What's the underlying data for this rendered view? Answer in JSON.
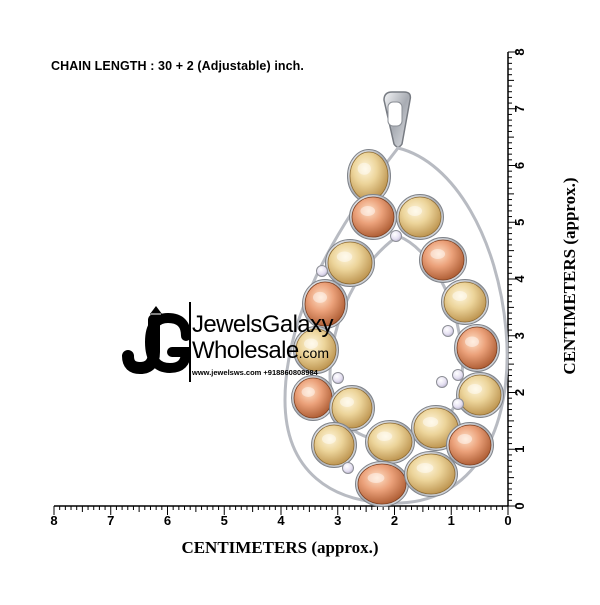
{
  "chain_note": "CHAIN LENGTH : 30 + 2 (Adjustable) inch.",
  "axes": {
    "x_label": "CENTIMETERS (approx.)",
    "y_label": "CENTIMETERS (approx.)",
    "x_ticks": [
      "8",
      "7",
      "6",
      "5",
      "4",
      "3",
      "2",
      "1",
      "0"
    ],
    "y_ticks": [
      "8",
      "7",
      "6",
      "5",
      "4",
      "3",
      "2",
      "1",
      "0"
    ]
  },
  "watermark": {
    "logo_text": "JG",
    "name_line1": "JewelsGalaxy",
    "name_line2": "Wholesale",
    "name_suffix": ".com",
    "contact": "www.jewelsws.com +918860808984"
  },
  "colors": {
    "gold_stone": "#e8c98a",
    "peach_stone": "#e79a6e",
    "metal": "#b9bcc2"
  }
}
